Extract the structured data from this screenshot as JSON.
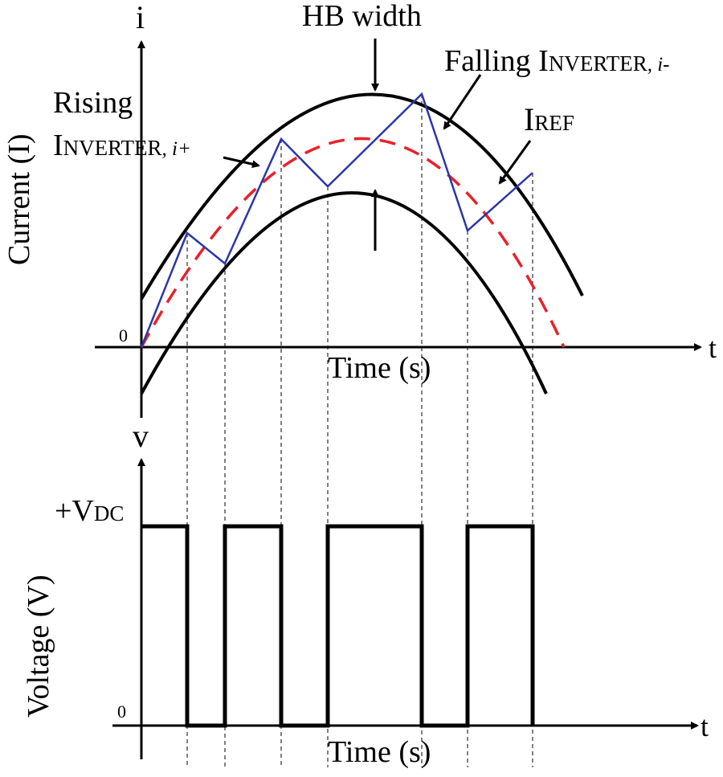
{
  "labels": {
    "i_axis": "i",
    "v_axis": "v",
    "t_axis_top": "t",
    "t_axis_bottom": "t",
    "zero_top": "0",
    "zero_bottom": "0",
    "current_ylabel": "Current (I)",
    "voltage_ylabel": "Voltage (V)",
    "time_top": "Time (s)",
    "time_bottom": "Time (s)",
    "hb_width": "HB width",
    "rising_word": "Rising",
    "rising_I": "I",
    "rising_sub": "NVERTER",
    "rising_sign": ", i+",
    "falling_word": "Falling I",
    "falling_sub": "NVERTER",
    "falling_sign": ", i-",
    "iref_I": "I",
    "iref_sub": "REF",
    "vdc_prefix": "+V",
    "vdc_sub": "DC"
  },
  "colors": {
    "band": "#000000",
    "reference": "#e8202a",
    "inverter_current": "#2b36a8",
    "voltage": "#000000",
    "guides": "#000000"
  },
  "voltage_pulses": [
    "+VDC",
    "0",
    "+VDC",
    "0",
    "+VDC",
    "0",
    "+VDC",
    "0"
  ]
}
